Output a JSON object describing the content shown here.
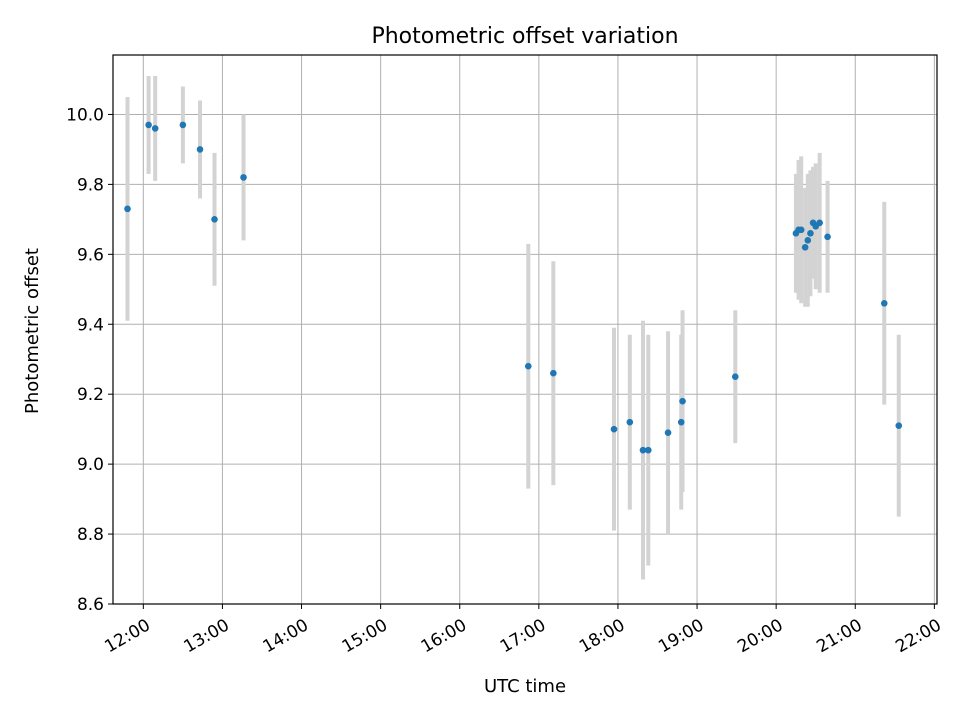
{
  "chart_data": {
    "type": "scatter",
    "title": "Photometric offset variation",
    "xlabel": "UTC time",
    "ylabel": "Photometric offset",
    "xlim": [
      "11:37",
      "22:02"
    ],
    "ylim": [
      8.6,
      10.17
    ],
    "grid": true,
    "x_ticks": [
      "12:00",
      "13:00",
      "14:00",
      "15:00",
      "16:00",
      "17:00",
      "18:00",
      "19:00",
      "20:00",
      "21:00",
      "22:00"
    ],
    "y_ticks": [
      8.6,
      8.8,
      9.0,
      9.2,
      9.4,
      9.6,
      9.8,
      10.0
    ],
    "y_tick_labels": [
      "8.6",
      "8.8",
      "9.0",
      "9.2",
      "9.4",
      "9.6",
      "9.8",
      "10.0"
    ],
    "colors": {
      "point": "#1f77b4",
      "errorbar": "#d3d3d3",
      "grid": "#b0b0b0"
    },
    "points": [
      {
        "x": "11:48",
        "y": 9.73,
        "err": 0.32
      },
      {
        "x": "12:04",
        "y": 9.97,
        "err": 0.14
      },
      {
        "x": "12:09",
        "y": 9.96,
        "err": 0.15
      },
      {
        "x": "12:30",
        "y": 9.97,
        "err": 0.11
      },
      {
        "x": "12:43",
        "y": 9.9,
        "err": 0.14
      },
      {
        "x": "12:54",
        "y": 9.7,
        "err": 0.19
      },
      {
        "x": "13:16",
        "y": 9.82,
        "err": 0.18
      },
      {
        "x": "16:52",
        "y": 9.28,
        "err": 0.35
      },
      {
        "x": "17:11",
        "y": 9.26,
        "err": 0.32
      },
      {
        "x": "17:57",
        "y": 9.1,
        "err": 0.29
      },
      {
        "x": "18:09",
        "y": 9.12,
        "err": 0.25
      },
      {
        "x": "18:19",
        "y": 9.04,
        "err": 0.37
      },
      {
        "x": "18:23",
        "y": 9.04,
        "err": 0.33
      },
      {
        "x": "18:38",
        "y": 9.09,
        "err": 0.29
      },
      {
        "x": "18:48",
        "y": 9.12,
        "err": 0.25
      },
      {
        "x": "18:49",
        "y": 9.18,
        "err": 0.26
      },
      {
        "x": "19:29",
        "y": 9.25,
        "err": 0.19
      },
      {
        "x": "20:15",
        "y": 9.66,
        "err": 0.17
      },
      {
        "x": "20:17",
        "y": 9.67,
        "err": 0.2
      },
      {
        "x": "20:19",
        "y": 9.67,
        "err": 0.21
      },
      {
        "x": "20:22",
        "y": 9.62,
        "err": 0.17
      },
      {
        "x": "20:24",
        "y": 9.64,
        "err": 0.19
      },
      {
        "x": "20:26",
        "y": 9.66,
        "err": 0.18
      },
      {
        "x": "20:28",
        "y": 9.69,
        "err": 0.16
      },
      {
        "x": "20:30",
        "y": 9.68,
        "err": 0.18
      },
      {
        "x": "20:33",
        "y": 9.69,
        "err": 0.2
      },
      {
        "x": "20:39",
        "y": 9.65,
        "err": 0.16
      },
      {
        "x": "21:22",
        "y": 9.46,
        "err": 0.29
      },
      {
        "x": "21:33",
        "y": 9.11,
        "err": 0.26
      }
    ]
  }
}
